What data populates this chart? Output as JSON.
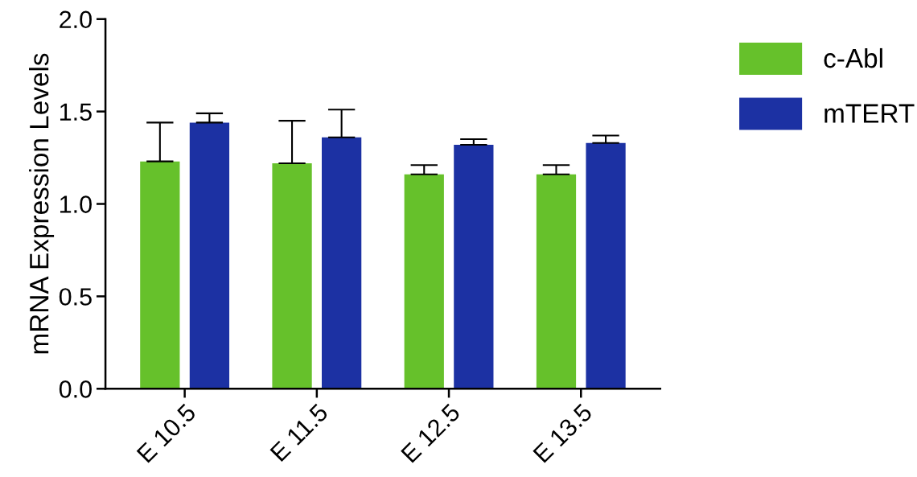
{
  "chart_data": {
    "type": "bar",
    "ylabel": "mRNA Expression Levels",
    "categories": [
      "E 10.5",
      "E 11.5",
      "E 12.5",
      "E 13.5"
    ],
    "series": [
      {
        "name": "c-Abl",
        "color": "#66c12b",
        "values": [
          1.23,
          1.22,
          1.16,
          1.16
        ],
        "errors": [
          [
            1.23,
            1.44
          ],
          [
            1.22,
            1.45
          ],
          [
            1.16,
            1.21
          ],
          [
            1.16,
            1.21
          ]
        ]
      },
      {
        "name": "mTERT",
        "color": "#1c31a3",
        "values": [
          1.44,
          1.36,
          1.32,
          1.33
        ],
        "errors": [
          [
            1.44,
            1.49
          ],
          [
            1.36,
            1.51
          ],
          [
            1.32,
            1.35
          ],
          [
            1.33,
            1.37
          ]
        ]
      }
    ],
    "ylim": [
      0,
      2.0
    ],
    "yticks": [
      {
        "value": 0,
        "label": "0.0"
      },
      {
        "value": 0.5,
        "label": "0.5"
      },
      {
        "value": 1.0,
        "label": "1.0"
      },
      {
        "value": 1.5,
        "label": "1.5"
      },
      {
        "value": 2.0,
        "label": "2.0"
      }
    ],
    "grid": false,
    "legend": "top right"
  }
}
